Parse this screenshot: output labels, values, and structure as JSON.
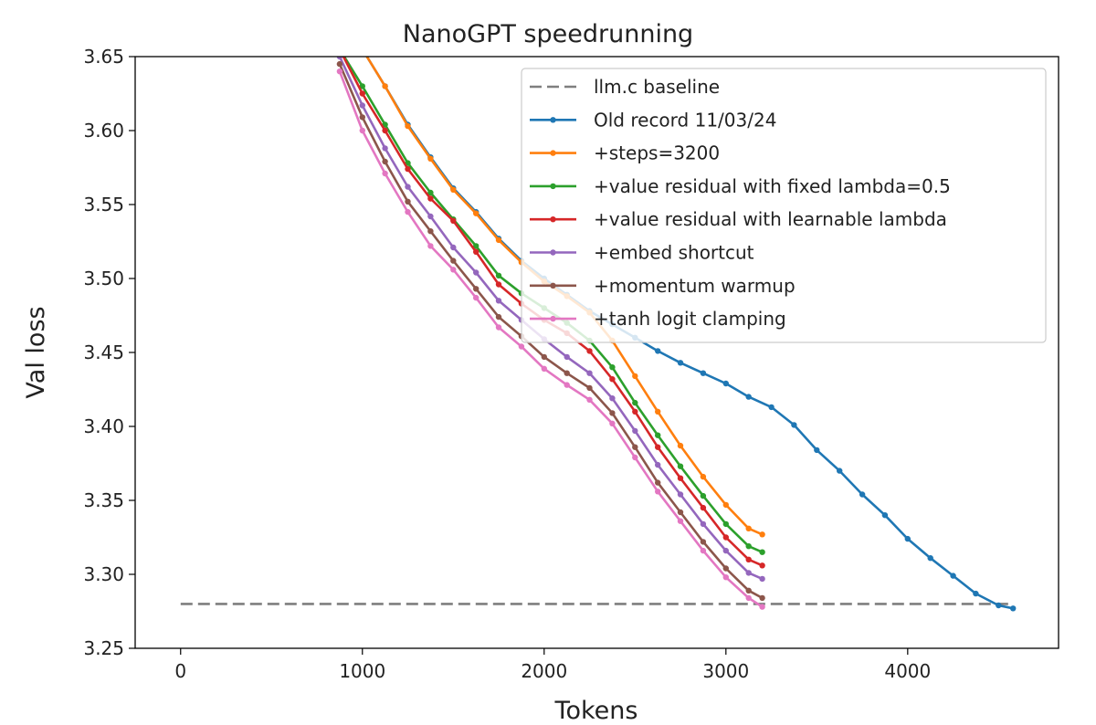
{
  "chart_data": {
    "type": "line",
    "title": "NanoGPT speedrunning",
    "xlabel": "Tokens",
    "ylabel": "Val loss",
    "xlim": [
      -250,
      4830
    ],
    "ylim": [
      3.25,
      3.65
    ],
    "xticks": [
      0,
      1000,
      2000,
      3000,
      4000
    ],
    "yticks": [
      3.25,
      3.3,
      3.35,
      3.4,
      3.45,
      3.5,
      3.55,
      3.6,
      3.65
    ],
    "xtick_labels": [
      "0",
      "1000",
      "2000",
      "3000",
      "4000"
    ],
    "ytick_labels": [
      "3.25",
      "3.30",
      "3.35",
      "3.40",
      "3.45",
      "3.50",
      "3.55",
      "3.60",
      "3.65"
    ],
    "grid": false,
    "legend_position": "top-right",
    "series": [
      {
        "name": "llm.c baseline",
        "color": "#7f7f7f",
        "style": "dashed",
        "markers": false,
        "x": [
          0,
          4580
        ],
        "y": [
          3.28,
          3.28
        ]
      },
      {
        "name": "Old record 11/03/24",
        "color": "#1f77b4",
        "style": "solid",
        "markers": true,
        "x": [
          1000,
          1125,
          1250,
          1375,
          1500,
          1625,
          1750,
          1875,
          2000,
          2125,
          2250,
          2375,
          2500,
          2625,
          2750,
          2875,
          3000,
          3125,
          3250,
          3375,
          3500,
          3625,
          3750,
          3875,
          4000,
          4125,
          4250,
          4375,
          4500,
          4580
        ],
        "y": [
          3.655,
          3.63,
          3.604,
          3.582,
          3.561,
          3.545,
          3.527,
          3.512,
          3.5,
          3.489,
          3.478,
          3.469,
          3.46,
          3.451,
          3.443,
          3.436,
          3.429,
          3.42,
          3.413,
          3.401,
          3.384,
          3.37,
          3.354,
          3.34,
          3.324,
          3.311,
          3.299,
          3.287,
          3.279,
          3.277
        ]
      },
      {
        "name": "+steps=3200",
        "color": "#ff7f0e",
        "style": "solid",
        "markers": true,
        "x": [
          1000,
          1125,
          1250,
          1375,
          1500,
          1625,
          1750,
          1875,
          2000,
          2125,
          2250,
          2375,
          2500,
          2625,
          2750,
          2875,
          3000,
          3125,
          3200
        ],
        "y": [
          3.655,
          3.63,
          3.603,
          3.581,
          3.56,
          3.544,
          3.526,
          3.511,
          3.498,
          3.488,
          3.477,
          3.458,
          3.434,
          3.41,
          3.387,
          3.366,
          3.347,
          3.331,
          3.327
        ]
      },
      {
        "name": "+value residual with fixed lambda=0.5",
        "color": "#2ca02c",
        "style": "solid",
        "markers": true,
        "x": [
          875,
          1000,
          1125,
          1250,
          1375,
          1500,
          1625,
          1750,
          1875,
          2000,
          2125,
          2250,
          2375,
          2500,
          2625,
          2750,
          2875,
          3000,
          3125,
          3200
        ],
        "y": [
          3.655,
          3.63,
          3.604,
          3.578,
          3.558,
          3.54,
          3.522,
          3.502,
          3.49,
          3.48,
          3.47,
          3.458,
          3.44,
          3.416,
          3.394,
          3.373,
          3.353,
          3.334,
          3.319,
          3.315
        ]
      },
      {
        "name": "+value residual with learnable lambda",
        "color": "#d62728",
        "style": "solid",
        "markers": true,
        "x": [
          875,
          1000,
          1125,
          1250,
          1375,
          1500,
          1625,
          1750,
          1875,
          2000,
          2125,
          2250,
          2375,
          2500,
          2625,
          2750,
          2875,
          3000,
          3125,
          3200
        ],
        "y": [
          3.655,
          3.625,
          3.6,
          3.574,
          3.554,
          3.539,
          3.518,
          3.496,
          3.483,
          3.472,
          3.463,
          3.451,
          3.432,
          3.41,
          3.386,
          3.365,
          3.345,
          3.325,
          3.31,
          3.306
        ]
      },
      {
        "name": "+embed shortcut",
        "color": "#9467bd",
        "style": "solid",
        "markers": true,
        "x": [
          875,
          1000,
          1125,
          1250,
          1375,
          1500,
          1625,
          1750,
          1875,
          2000,
          2125,
          2250,
          2375,
          2500,
          2625,
          2750,
          2875,
          3000,
          3125,
          3200
        ],
        "y": [
          3.65,
          3.617,
          3.588,
          3.562,
          3.542,
          3.521,
          3.504,
          3.485,
          3.472,
          3.459,
          3.447,
          3.436,
          3.419,
          3.397,
          3.374,
          3.354,
          3.334,
          3.316,
          3.301,
          3.297
        ]
      },
      {
        "name": "+momentum warmup",
        "color": "#8c564b",
        "style": "solid",
        "markers": true,
        "x": [
          875,
          1000,
          1125,
          1250,
          1375,
          1500,
          1625,
          1750,
          1875,
          2000,
          2125,
          2250,
          2375,
          2500,
          2625,
          2750,
          2875,
          3000,
          3125,
          3200
        ],
        "y": [
          3.645,
          3.609,
          3.579,
          3.552,
          3.532,
          3.512,
          3.493,
          3.474,
          3.461,
          3.447,
          3.436,
          3.426,
          3.409,
          3.386,
          3.362,
          3.342,
          3.322,
          3.304,
          3.289,
          3.284
        ]
      },
      {
        "name": "+tanh logit clamping",
        "color": "#e377c2",
        "style": "solid",
        "markers": true,
        "x": [
          875,
          1000,
          1125,
          1250,
          1375,
          1500,
          1625,
          1750,
          1875,
          2000,
          2125,
          2250,
          2375,
          2500,
          2625,
          2750,
          2875,
          3000,
          3125,
          3200
        ],
        "y": [
          3.64,
          3.6,
          3.571,
          3.545,
          3.522,
          3.506,
          3.487,
          3.467,
          3.454,
          3.439,
          3.428,
          3.418,
          3.402,
          3.379,
          3.356,
          3.336,
          3.316,
          3.298,
          3.284,
          3.278
        ]
      }
    ]
  }
}
